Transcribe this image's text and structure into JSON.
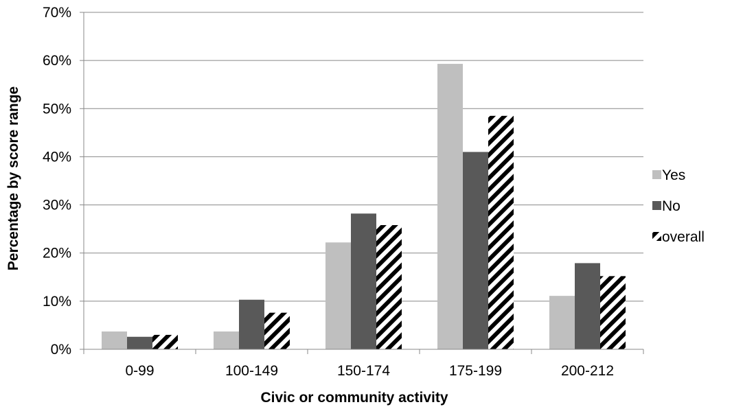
{
  "chart_data": {
    "type": "bar",
    "xlabel": "Civic or community activity",
    "ylabel": "Percentage by score range",
    "categories": [
      "0-99",
      "100-149",
      "150-174",
      "175-199",
      "200-212"
    ],
    "ylim": [
      0,
      70
    ],
    "yticks": [
      "0%",
      "10%",
      "20%",
      "30%",
      "40%",
      "50%",
      "60%",
      "70%"
    ],
    "grid": true,
    "legend_position": "right",
    "series": [
      {
        "name": "Yes",
        "values": [
          3.7,
          3.7,
          22.2,
          59.3,
          11.1
        ],
        "color": "#bfbfbf",
        "pattern": "solid"
      },
      {
        "name": "No",
        "values": [
          2.6,
          10.3,
          28.2,
          41.0,
          17.9
        ],
        "color": "#595959",
        "pattern": "solid"
      },
      {
        "name": "overall",
        "values": [
          3.0,
          7.6,
          25.8,
          48.5,
          15.2
        ],
        "color": "#000000",
        "pattern": "diagonal-stripes"
      }
    ]
  }
}
